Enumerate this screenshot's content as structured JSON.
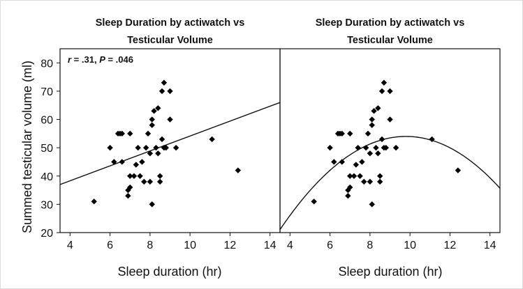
{
  "figure": {
    "ylabel": "Summed testicular volume (ml)",
    "xlabel_left": "Sleep duration (hr)",
    "xlabel_right": "Sleep duration (hr)"
  },
  "annotation": {
    "r_letter": "r",
    "r_value": " = .31, ",
    "p_letter": "P",
    "p_value": " = .046"
  },
  "chart_data": [
    {
      "type": "scatter",
      "title_line1": "Sleep Duration by actiwatch vs",
      "title_line2": "Testicular Volume",
      "xlabel": "Sleep duration (hr)",
      "ylabel": "Summed testicular volume (ml)",
      "xlim": [
        3.5,
        14.5
      ],
      "ylim": [
        20,
        85
      ],
      "x_ticks": [
        4,
        6,
        8,
        10,
        12,
        14
      ],
      "y_ticks": [
        20,
        30,
        40,
        50,
        60,
        70,
        80
      ],
      "fit": {
        "type": "linear",
        "x": [
          3.5,
          14.5
        ],
        "y": [
          37,
          66
        ]
      },
      "points": [
        {
          "x": 5.2,
          "y": 31
        },
        {
          "x": 6.0,
          "y": 50
        },
        {
          "x": 6.2,
          "y": 45
        },
        {
          "x": 6.4,
          "y": 55
        },
        {
          "x": 6.5,
          "y": 55
        },
        {
          "x": 6.6,
          "y": 55
        },
        {
          "x": 6.6,
          "y": 45
        },
        {
          "x": 6.9,
          "y": 33
        },
        {
          "x": 6.9,
          "y": 35
        },
        {
          "x": 7.0,
          "y": 36
        },
        {
          "x": 7.0,
          "y": 40
        },
        {
          "x": 7.0,
          "y": 55
        },
        {
          "x": 7.2,
          "y": 40
        },
        {
          "x": 7.3,
          "y": 44
        },
        {
          "x": 7.4,
          "y": 50
        },
        {
          "x": 7.5,
          "y": 40
        },
        {
          "x": 7.6,
          "y": 45
        },
        {
          "x": 7.7,
          "y": 38
        },
        {
          "x": 7.8,
          "y": 50
        },
        {
          "x": 7.9,
          "y": 55
        },
        {
          "x": 8.0,
          "y": 38
        },
        {
          "x": 8.0,
          "y": 48
        },
        {
          "x": 8.1,
          "y": 58
        },
        {
          "x": 8.1,
          "y": 30
        },
        {
          "x": 8.1,
          "y": 60
        },
        {
          "x": 8.2,
          "y": 63
        },
        {
          "x": 8.3,
          "y": 50
        },
        {
          "x": 8.4,
          "y": 64
        },
        {
          "x": 8.4,
          "y": 48
        },
        {
          "x": 8.5,
          "y": 38
        },
        {
          "x": 8.5,
          "y": 40
        },
        {
          "x": 8.6,
          "y": 53
        },
        {
          "x": 8.6,
          "y": 70
        },
        {
          "x": 8.7,
          "y": 50
        },
        {
          "x": 8.7,
          "y": 73
        },
        {
          "x": 8.8,
          "y": 50
        },
        {
          "x": 9.0,
          "y": 60
        },
        {
          "x": 9.0,
          "y": 70
        },
        {
          "x": 9.3,
          "y": 50
        },
        {
          "x": 11.1,
          "y": 53
        },
        {
          "x": 12.4,
          "y": 42
        }
      ]
    },
    {
      "type": "scatter",
      "title_line1": "Sleep Duration by actiwatch vs",
      "title_line2": "Testicular Volume",
      "xlabel": "Sleep duration (hr)",
      "ylabel": "Summed testicular volume (ml)",
      "xlim": [
        3.5,
        14.5
      ],
      "ylim": [
        20,
        85
      ],
      "x_ticks": [
        4,
        6,
        8,
        10,
        12,
        14
      ],
      "y_ticks": [
        20,
        30,
        40,
        50,
        60,
        70,
        80
      ],
      "fit": {
        "type": "quadratic",
        "vertex_x": 9.8,
        "vertex_y": 54,
        "curvature": -0.83
      },
      "points": [
        {
          "x": 5.2,
          "y": 31
        },
        {
          "x": 6.0,
          "y": 50
        },
        {
          "x": 6.2,
          "y": 45
        },
        {
          "x": 6.4,
          "y": 55
        },
        {
          "x": 6.5,
          "y": 55
        },
        {
          "x": 6.6,
          "y": 55
        },
        {
          "x": 6.6,
          "y": 45
        },
        {
          "x": 6.9,
          "y": 33
        },
        {
          "x": 6.9,
          "y": 35
        },
        {
          "x": 7.0,
          "y": 36
        },
        {
          "x": 7.0,
          "y": 40
        },
        {
          "x": 7.0,
          "y": 55
        },
        {
          "x": 7.2,
          "y": 40
        },
        {
          "x": 7.3,
          "y": 44
        },
        {
          "x": 7.4,
          "y": 50
        },
        {
          "x": 7.5,
          "y": 40
        },
        {
          "x": 7.6,
          "y": 45
        },
        {
          "x": 7.7,
          "y": 38
        },
        {
          "x": 7.8,
          "y": 50
        },
        {
          "x": 7.9,
          "y": 55
        },
        {
          "x": 8.0,
          "y": 38
        },
        {
          "x": 8.0,
          "y": 48
        },
        {
          "x": 8.1,
          "y": 58
        },
        {
          "x": 8.1,
          "y": 30
        },
        {
          "x": 8.1,
          "y": 60
        },
        {
          "x": 8.2,
          "y": 63
        },
        {
          "x": 8.3,
          "y": 50
        },
        {
          "x": 8.4,
          "y": 64
        },
        {
          "x": 8.4,
          "y": 48
        },
        {
          "x": 8.5,
          "y": 38
        },
        {
          "x": 8.5,
          "y": 40
        },
        {
          "x": 8.6,
          "y": 53
        },
        {
          "x": 8.6,
          "y": 70
        },
        {
          "x": 8.7,
          "y": 50
        },
        {
          "x": 8.7,
          "y": 73
        },
        {
          "x": 8.8,
          "y": 50
        },
        {
          "x": 9.0,
          "y": 60
        },
        {
          "x": 9.0,
          "y": 70
        },
        {
          "x": 9.3,
          "y": 50
        },
        {
          "x": 11.1,
          "y": 53
        },
        {
          "x": 12.4,
          "y": 42
        }
      ]
    }
  ]
}
